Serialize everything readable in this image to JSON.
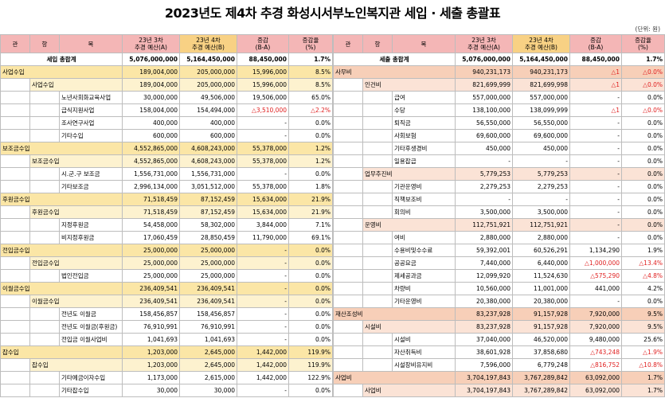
{
  "title": "2023년도 제4차 추경 화성시서부노인복지관 세입 · 세출 총괄표",
  "unit": "(단위: 원)",
  "columns": {
    "kwan": "관",
    "hang": "항",
    "mok": "목",
    "a_line1": "23년 3차",
    "a_line2": "추경 예산(A)",
    "b_line1": "23년 4차",
    "b_line2": "추경 예산(B)",
    "diff_line1": "증감",
    "diff_line2": "(B-A)",
    "rate_line1": "증감율",
    "rate_line2": "(%)"
  },
  "left": {
    "total": {
      "label": "세입 총합계",
      "a": "5,076,000,000",
      "b": "5,164,450,000",
      "diff": "88,450,000",
      "rate": "1.7%"
    },
    "rows": [
      {
        "level": 1,
        "name": "사업수입",
        "a": "189,004,000",
        "b": "205,000,000",
        "diff": "15,996,000",
        "rate": "8.5%"
      },
      {
        "level": 2,
        "name": "사업수입",
        "a": "189,004,000",
        "b": "205,000,000",
        "diff": "15,996,000",
        "rate": "8.5%"
      },
      {
        "level": 3,
        "name": "노년사회화교육사업",
        "a": "30,000,000",
        "b": "49,506,000",
        "diff": "19,506,000",
        "rate": "65.0%"
      },
      {
        "level": 3,
        "name": "급식지원사업",
        "a": "158,004,000",
        "b": "154,494,000",
        "diff": "△3,510,000",
        "rate": "△2.2%",
        "neg": true
      },
      {
        "level": 3,
        "name": "조사연구사업",
        "a": "400,000",
        "b": "400,000",
        "diff": "-",
        "rate": "0.0%"
      },
      {
        "level": 3,
        "name": "기타수입",
        "a": "600,000",
        "b": "600,000",
        "diff": "-",
        "rate": "0.0%"
      },
      {
        "level": 1,
        "name": "보조금수입",
        "a": "4,552,865,000",
        "b": "4,608,243,000",
        "diff": "55,378,000",
        "rate": "1.2%"
      },
      {
        "level": 2,
        "name": "보조금수입",
        "a": "4,552,865,000",
        "b": "4,608,243,000",
        "diff": "55,378,000",
        "rate": "1.2%"
      },
      {
        "level": 3,
        "name": "시.군.구 보조금",
        "a": "1,556,731,000",
        "b": "1,556,731,000",
        "diff": "-",
        "rate": "0.0%"
      },
      {
        "level": 3,
        "name": "기타보조금",
        "a": "2,996,134,000",
        "b": "3,051,512,000",
        "diff": "55,378,000",
        "rate": "1.8%"
      },
      {
        "level": 1,
        "name": "후원금수입",
        "a": "71,518,459",
        "b": "87,152,459",
        "diff": "15,634,000",
        "rate": "21.9%"
      },
      {
        "level": 2,
        "name": "후원금수입",
        "a": "71,518,459",
        "b": "87,152,459",
        "diff": "15,634,000",
        "rate": "21.9%"
      },
      {
        "level": 3,
        "name": "지정후원금",
        "a": "54,458,000",
        "b": "58,302,000",
        "diff": "3,844,000",
        "rate": "7.1%"
      },
      {
        "level": 3,
        "name": "비지정후원금",
        "a": "17,060,459",
        "b": "28,850,459",
        "diff": "11,790,000",
        "rate": "69.1%"
      },
      {
        "level": 1,
        "name": "전입금수입",
        "a": "25,000,000",
        "b": "25,000,000",
        "diff": "-",
        "rate": "0.0%"
      },
      {
        "level": 2,
        "name": "전입금수입",
        "a": "25,000,000",
        "b": "25,000,000",
        "diff": "-",
        "rate": "0.0%"
      },
      {
        "level": 3,
        "name": "법인전입금",
        "a": "25,000,000",
        "b": "25,000,000",
        "diff": "-",
        "rate": "0.0%"
      },
      {
        "level": 1,
        "name": "이월금수입",
        "a": "236,409,541",
        "b": "236,409,541",
        "diff": "-",
        "rate": "0.0%"
      },
      {
        "level": 2,
        "name": "이월금수입",
        "a": "236,409,541",
        "b": "236,409,541",
        "diff": "-",
        "rate": "0.0%"
      },
      {
        "level": 3,
        "name": "전년도 이월금",
        "a": "158,456,857",
        "b": "158,456,857",
        "diff": "-",
        "rate": "0.0%"
      },
      {
        "level": 3,
        "name": "전년도 이월금(후원금)",
        "a": "76,910,991",
        "b": "76,910,991",
        "diff": "-",
        "rate": "0.0%"
      },
      {
        "level": 3,
        "name": "전입금 이월사업비",
        "a": "1,041,693",
        "b": "1,041,693",
        "diff": "-",
        "rate": "0.0%"
      },
      {
        "level": 1,
        "name": "잡수입",
        "a": "1,203,000",
        "b": "2,645,000",
        "diff": "1,442,000",
        "rate": "119.9%"
      },
      {
        "level": 2,
        "name": "잡수입",
        "a": "1,203,000",
        "b": "2,645,000",
        "diff": "1,442,000",
        "rate": "119.9%"
      },
      {
        "level": 3,
        "name": "기타예금이자수입",
        "a": "1,173,000",
        "b": "2,615,000",
        "diff": "1,442,000",
        "rate": "122.9%"
      },
      {
        "level": 3,
        "name": "기타잡수입",
        "a": "30,000",
        "b": "30,000",
        "diff": "-",
        "rate": "0.0%"
      }
    ]
  },
  "right": {
    "total": {
      "label": "세출 총합계",
      "a": "5,076,000,000",
      "b": "5,164,450,000",
      "diff": "88,450,000",
      "rate": "1.7%"
    },
    "rows": [
      {
        "level": 1,
        "name": "사무비",
        "a": "940,231,173",
        "b": "940,231,173",
        "diff": "△1",
        "rate": "△0.0%",
        "neg": true
      },
      {
        "level": 2,
        "name": "인건비",
        "a": "821,699,999",
        "b": "821,699,998",
        "diff": "△1",
        "rate": "△0.0%",
        "neg": true
      },
      {
        "level": 3,
        "name": "급여",
        "a": "557,000,000",
        "b": "557,000,000",
        "diff": "-",
        "rate": "0.0%"
      },
      {
        "level": 3,
        "name": "수당",
        "a": "138,100,000",
        "b": "138,099,999",
        "diff": "△1",
        "rate": "△0.0%",
        "neg": true
      },
      {
        "level": 3,
        "name": "퇴직금",
        "a": "56,550,000",
        "b": "56,550,000",
        "diff": "-",
        "rate": "0.0%"
      },
      {
        "level": 3,
        "name": "사회보험",
        "a": "69,600,000",
        "b": "69,600,000",
        "diff": "-",
        "rate": "0.0%"
      },
      {
        "level": 3,
        "name": "기타후생경비",
        "a": "450,000",
        "b": "450,000",
        "diff": "-",
        "rate": "0.0%"
      },
      {
        "level": 3,
        "name": "일용잡급",
        "a": "-",
        "b": "-",
        "diff": "-",
        "rate": "0.0%"
      },
      {
        "level": 2,
        "name": "업무추진비",
        "a": "5,779,253",
        "b": "5,779,253",
        "diff": "-",
        "rate": "0.0%"
      },
      {
        "level": 3,
        "name": "기관운영비",
        "a": "2,279,253",
        "b": "2,279,253",
        "diff": "-",
        "rate": "0.0%"
      },
      {
        "level": 3,
        "name": "직책보조비",
        "a": "-",
        "b": "-",
        "diff": "-",
        "rate": "0.0%"
      },
      {
        "level": 3,
        "name": "회의비",
        "a": "3,500,000",
        "b": "3,500,000",
        "diff": "-",
        "rate": "0.0%"
      },
      {
        "level": 2,
        "name": "운영비",
        "a": "112,751,921",
        "b": "112,751,921",
        "diff": "-",
        "rate": "0.0%"
      },
      {
        "level": 3,
        "name": "여비",
        "a": "2,880,000",
        "b": "2,880,000",
        "diff": "-",
        "rate": "0.0%"
      },
      {
        "level": 3,
        "name": "수용비및수수료",
        "a": "59,392,001",
        "b": "60,526,291",
        "diff": "1,134,290",
        "rate": "1.9%"
      },
      {
        "level": 3,
        "name": "공공요금",
        "a": "7,440,000",
        "b": "6,440,000",
        "diff": "△1,000,000",
        "rate": "△13.4%",
        "neg": true
      },
      {
        "level": 3,
        "name": "제세공과금",
        "a": "12,099,920",
        "b": "11,524,630",
        "diff": "△575,290",
        "rate": "△4.8%",
        "neg": true
      },
      {
        "level": 3,
        "name": "차량비",
        "a": "10,560,000",
        "b": "11,001,000",
        "diff": "441,000",
        "rate": "4.2%"
      },
      {
        "level": 3,
        "name": "기타운영비",
        "a": "20,380,000",
        "b": "20,380,000",
        "diff": "-",
        "rate": "0.0%"
      },
      {
        "level": 1,
        "name": "재산조성비",
        "a": "83,237,928",
        "b": "91,157,928",
        "diff": "7,920,000",
        "rate": "9.5%"
      },
      {
        "level": 2,
        "name": "시설비",
        "a": "83,237,928",
        "b": "91,157,928",
        "diff": "7,920,000",
        "rate": "9.5%"
      },
      {
        "level": 3,
        "name": "시설비",
        "a": "37,040,000",
        "b": "46,520,000",
        "diff": "9,480,000",
        "rate": "25.6%"
      },
      {
        "level": 3,
        "name": "자산취득비",
        "a": "38,601,928",
        "b": "37,858,680",
        "diff": "△743,248",
        "rate": "△1.9%",
        "neg": true
      },
      {
        "level": 3,
        "name": "시설장비유지비",
        "a": "7,596,000",
        "b": "6,779,248",
        "diff": "△816,752",
        "rate": "△10.8%",
        "neg": true
      },
      {
        "level": 1,
        "name": "사업비",
        "a": "3,704,197,843",
        "b": "3,767,289,842",
        "diff": "63,092,000",
        "rate": "1.7%"
      },
      {
        "level": 2,
        "name": "사업비",
        "a": "3,704,197,843",
        "b": "3,767,289,842",
        "diff": "63,092,000",
        "rate": "1.7%"
      }
    ]
  }
}
